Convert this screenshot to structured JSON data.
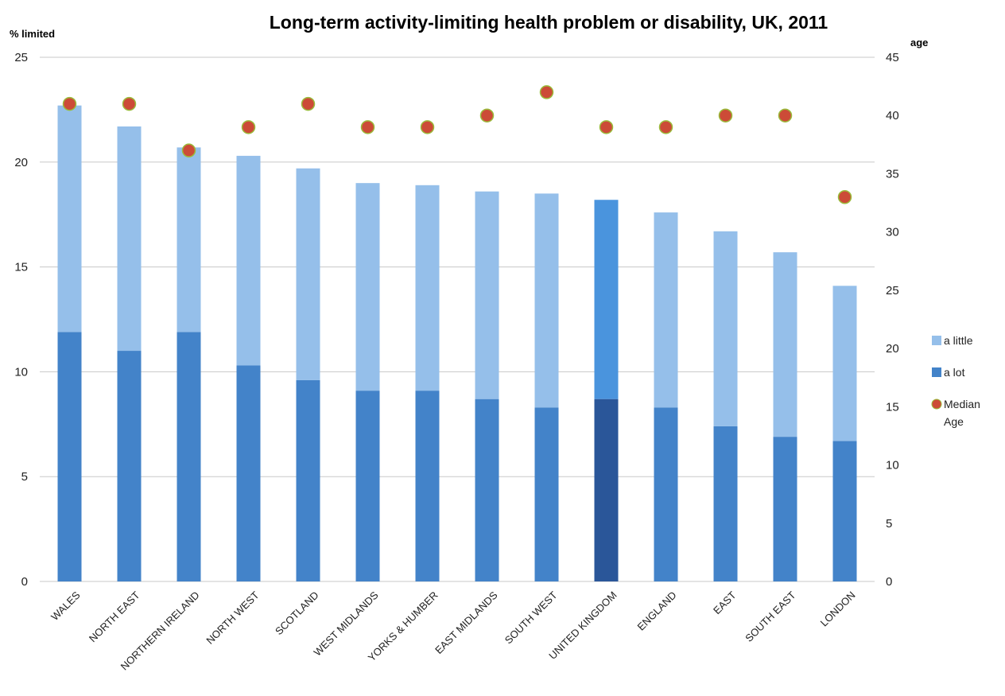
{
  "chart_data": {
    "type": "bar",
    "stacked": true,
    "title": "Long-term activity-limiting health problem or disability, UK, 2011",
    "ylabel": "% limited",
    "y2label": "age",
    "ylim": [
      0,
      25
    ],
    "yticks": [
      0,
      5,
      10,
      15,
      20,
      25
    ],
    "y2lim": [
      0,
      45
    ],
    "y2ticks": [
      0,
      5,
      10,
      15,
      20,
      25,
      30,
      35,
      40,
      45
    ],
    "grid": true,
    "legend_position": "right",
    "categories": [
      "WALES",
      "NORTH EAST",
      "NORTHERN IRELAND",
      "NORTH WEST",
      "SCOTLAND",
      "WEST MIDLANDS",
      "YORKS & HUMBER",
      "EAST MIDLANDS",
      "SOUTH WEST",
      "UNITED KINGDOM",
      "ENGLAND",
      "EAST",
      "SOUTH EAST",
      "LONDON"
    ],
    "highlight_category": "UNITED KINGDOM",
    "series": [
      {
        "name": "a lot",
        "values": [
          11.9,
          11.0,
          11.9,
          10.3,
          9.6,
          9.1,
          9.1,
          8.7,
          8.3,
          8.7,
          8.3,
          7.4,
          6.9,
          6.7
        ],
        "color": "#4383c9",
        "highlight_color": "#2a5699"
      },
      {
        "name": "a little",
        "values": [
          10.8,
          10.7,
          8.8,
          10.0,
          10.1,
          9.9,
          9.8,
          9.9,
          10.2,
          9.5,
          9.3,
          9.3,
          8.8,
          7.4
        ],
        "color": "#95bfea",
        "highlight_color": "#4a94dd"
      },
      {
        "name": "Median Age",
        "axis": "secondary",
        "type": "scatter",
        "values": [
          41,
          41,
          37,
          39,
          41,
          39,
          39,
          40,
          42,
          39,
          39,
          40,
          40,
          33
        ],
        "color": "#cc4b37",
        "edge_color": "#9bbb3b"
      }
    ],
    "legend": [
      {
        "label": "a little",
        "series": "a little"
      },
      {
        "label": "a lot",
        "series": "a lot"
      },
      {
        "label": "Median Age",
        "series": "Median Age"
      }
    ]
  }
}
